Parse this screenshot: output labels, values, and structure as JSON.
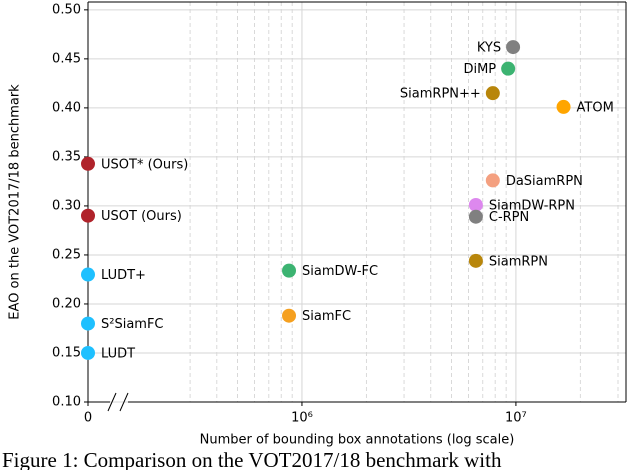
{
  "chart_data": {
    "type": "scatter",
    "x_label": "Number of bounding box annotations (log scale)",
    "y_label": "EAO on the VOT2017/18 benchmark",
    "caption": "Figure 1: Comparison on the VOT2017/18 benchmark with",
    "x_scale": "log",
    "x_axis_break": true,
    "xlim": [
      100000,
      32700000
    ],
    "ylim": [
      0.1,
      0.508
    ],
    "xticks": [
      {
        "value": 0,
        "label": "0"
      },
      {
        "value": 1000000,
        "label": "10⁶"
      },
      {
        "value": 10000000,
        "label": "10⁷"
      }
    ],
    "x_minor_ticks": [
      300000,
      400000,
      500000,
      600000,
      700000,
      800000,
      900000,
      2000000,
      3000000,
      4000000,
      5000000,
      6000000,
      7000000,
      8000000,
      9000000,
      20000000,
      30000000
    ],
    "yticks": [
      {
        "value": 0.1,
        "label": "0.10"
      },
      0.15,
      {
        "value": 0.2,
        "label": "0.20"
      },
      0.25,
      {
        "value": 0.3,
        "label": "0.30"
      },
      0.35,
      {
        "value": 0.4,
        "label": "0.40"
      },
      0.45,
      {
        "value": 0.5,
        "label": "0.50"
      }
    ],
    "grid": true,
    "points": [
      {
        "name": "USOT* (Ours)",
        "x": 0,
        "y": 0.343,
        "color": "#b0232b",
        "label_side": "right"
      },
      {
        "name": "USOT (Ours)",
        "x": 0,
        "y": 0.29,
        "color": "#b0232b",
        "label_side": "right"
      },
      {
        "name": "LUDT+",
        "x": 0,
        "y": 0.23,
        "color": "#1ec0ff",
        "label_side": "right"
      },
      {
        "name": "S²SiamFC",
        "x": 0,
        "y": 0.18,
        "color": "#1ec0ff",
        "label_side": "right"
      },
      {
        "name": "LUDT",
        "x": 0,
        "y": 0.15,
        "color": "#1ec0ff",
        "label_side": "right"
      },
      {
        "name": "SiamDW-FC",
        "x": 870000,
        "y": 0.234,
        "color": "#3cb371",
        "label_side": "right"
      },
      {
        "name": "SiamFC",
        "x": 870000,
        "y": 0.188,
        "color": "#f5a020",
        "label_side": "right"
      },
      {
        "name": "KYS",
        "x": 9700000,
        "y": 0.462,
        "color": "#808080",
        "label_side": "left"
      },
      {
        "name": "DiMP",
        "x": 9200000,
        "y": 0.44,
        "color": "#3cb371",
        "label_side": "left"
      },
      {
        "name": "SiamRPN++",
        "x": 7800000,
        "y": 0.415,
        "color": "#b8860b",
        "label_side": "left"
      },
      {
        "name": "ATOM",
        "x": 16700000,
        "y": 0.401,
        "color": "#ffa500",
        "label_side": "right"
      },
      {
        "name": "DaSiamRPN",
        "x": 7800000,
        "y": 0.326,
        "color": "#f4a080",
        "label_side": "right"
      },
      {
        "name": "SiamDW-RPN",
        "x": 6500000,
        "y": 0.301,
        "color": "#dd88ee",
        "label_side": "right"
      },
      {
        "name": "C-RPN",
        "x": 6500000,
        "y": 0.289,
        "color": "#808080",
        "label_side": "right"
      },
      {
        "name": "SiamRPN",
        "x": 6500000,
        "y": 0.244,
        "color": "#b8860b",
        "label_side": "right"
      }
    ]
  }
}
